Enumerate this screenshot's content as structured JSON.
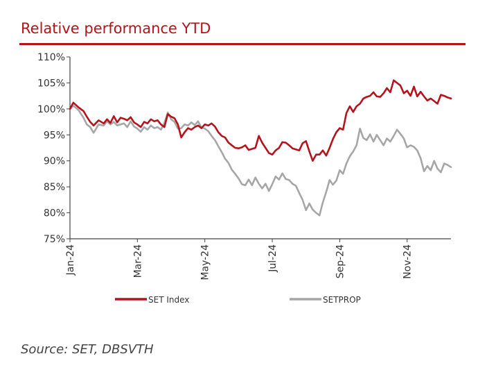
{
  "title": "Relative performance YTD",
  "source": "Source: SET, DBSVTH",
  "chart_data": {
    "type": "line",
    "ylim": [
      75,
      110
    ],
    "y_ticks": [
      "110%",
      "105%",
      "100%",
      "95%",
      "90%",
      "85%",
      "80%",
      "75%"
    ],
    "y_tick_values": [
      110,
      105,
      100,
      95,
      90,
      85,
      80,
      75
    ],
    "x_ticks": [
      "Jan-24",
      "Mar-24",
      "May-24",
      "Jul-24",
      "Sep-24",
      "Nov-24"
    ],
    "x_tick_values": [
      0,
      2,
      4,
      6,
      8,
      10
    ],
    "xlim": [
      0,
      11.3
    ],
    "legend_position": "bottom",
    "colors": {
      "SET Index": "#b5121b",
      "SETPROP": "#a6a6a6"
    },
    "series": [
      {
        "name": "SET Index",
        "x": [
          0,
          0.1,
          0.25,
          0.4,
          0.5,
          0.6,
          0.7,
          0.85,
          1.0,
          1.1,
          1.2,
          1.3,
          1.4,
          1.5,
          1.6,
          1.7,
          1.8,
          1.9,
          2.0,
          2.1,
          2.2,
          2.3,
          2.4,
          2.5,
          2.6,
          2.7,
          2.8,
          2.9,
          3.0,
          3.1,
          3.2,
          3.3,
          3.4,
          3.5,
          3.6,
          3.7,
          3.8,
          3.9,
          4.0,
          4.1,
          4.2,
          4.3,
          4.4,
          4.5,
          4.6,
          4.7,
          4.8,
          4.9,
          5.0,
          5.1,
          5.2,
          5.3,
          5.4,
          5.5,
          5.6,
          5.7,
          5.8,
          5.9,
          6.0,
          6.1,
          6.2,
          6.3,
          6.4,
          6.5,
          6.6,
          6.7,
          6.8,
          6.9,
          7.0,
          7.1,
          7.2,
          7.3,
          7.4,
          7.5,
          7.6,
          7.7,
          7.8,
          7.9,
          8.0,
          8.1,
          8.2,
          8.3,
          8.4,
          8.5,
          8.6,
          8.7,
          8.8,
          8.9,
          9.0,
          9.1,
          9.2,
          9.3,
          9.4,
          9.5,
          9.6,
          9.7,
          9.8,
          9.9,
          10.0,
          10.1,
          10.2,
          10.3,
          10.4,
          10.5,
          10.6,
          10.7,
          10.8,
          10.9,
          11.0,
          11.1,
          11.2,
          11.3
        ],
        "values": [
          100,
          101.2,
          100.3,
          99.6,
          98.5,
          97.5,
          96.8,
          97.8,
          97.2,
          98.0,
          97.3,
          98.6,
          97.4,
          98.3,
          98.1,
          97.8,
          98.4,
          97.4,
          97.0,
          96.5,
          97.5,
          97.2,
          98.0,
          97.6,
          97.8,
          97.0,
          96.5,
          99.0,
          98.5,
          98.2,
          97.0,
          94.5,
          95.5,
          96.3,
          96.0,
          96.5,
          96.8,
          96.3,
          97.0,
          96.8,
          97.2,
          96.6,
          95.5,
          94.8,
          94.5,
          93.5,
          93.0,
          92.5,
          92.4,
          92.6,
          93.0,
          92.1,
          92.3,
          92.5,
          94.8,
          93.5,
          92.5,
          91.5,
          91.2,
          92.0,
          92.5,
          93.6,
          93.5,
          93.0,
          92.4,
          92.2,
          92.0,
          93.4,
          93.8,
          91.8,
          90.0,
          91.2,
          91.2,
          92.0,
          91.0,
          92.5,
          94.2,
          95.5,
          96.3,
          96.0,
          99.2,
          100.5,
          99.4,
          100.5,
          101.0,
          102.0,
          102.3,
          102.5,
          103.2,
          102.4,
          102.3,
          103.0,
          104.0,
          103.2,
          105.5,
          105.0,
          104.5,
          103.0,
          103.5,
          102.5,
          104.3,
          102.4,
          103.3,
          102.4,
          101.6,
          102.0,
          101.5,
          101.0,
          102.7,
          102.5,
          102.2,
          102.0
        ]
      },
      {
        "name": "SETPROP",
        "x": [
          0,
          0.1,
          0.25,
          0.4,
          0.5,
          0.6,
          0.7,
          0.85,
          1.0,
          1.1,
          1.2,
          1.3,
          1.4,
          1.5,
          1.6,
          1.7,
          1.8,
          1.9,
          2.0,
          2.1,
          2.2,
          2.3,
          2.4,
          2.5,
          2.6,
          2.7,
          2.8,
          2.9,
          3.0,
          3.1,
          3.2,
          3.3,
          3.4,
          3.5,
          3.6,
          3.7,
          3.8,
          3.9,
          4.0,
          4.1,
          4.2,
          4.3,
          4.4,
          4.5,
          4.6,
          4.7,
          4.8,
          4.9,
          5.0,
          5.1,
          5.2,
          5.3,
          5.4,
          5.5,
          5.6,
          5.7,
          5.8,
          5.9,
          6.0,
          6.1,
          6.2,
          6.3,
          6.4,
          6.5,
          6.6,
          6.7,
          6.8,
          6.9,
          7.0,
          7.1,
          7.2,
          7.3,
          7.4,
          7.5,
          7.6,
          7.7,
          7.8,
          7.9,
          8.0,
          8.1,
          8.2,
          8.3,
          8.4,
          8.5,
          8.6,
          8.7,
          8.8,
          8.9,
          9.0,
          9.1,
          9.2,
          9.3,
          9.4,
          9.5,
          9.6,
          9.7,
          9.8,
          9.9,
          10.0,
          10.1,
          10.2,
          10.3,
          10.4,
          10.5,
          10.6,
          10.7,
          10.8,
          10.9,
          11.0,
          11.1,
          11.2,
          11.3
        ],
        "values": [
          100,
          100.6,
          99.8,
          98.3,
          97.0,
          96.5,
          95.4,
          97.0,
          96.8,
          97.6,
          97.0,
          97.5,
          96.8,
          97.0,
          97.2,
          96.5,
          97.6,
          96.6,
          96.2,
          95.6,
          96.5,
          96.0,
          96.8,
          96.3,
          96.5,
          96.0,
          97.3,
          99.3,
          98.0,
          97.5,
          96.2,
          96.3,
          97.0,
          96.8,
          97.4,
          96.9,
          97.6,
          96.4,
          96.2,
          95.7,
          94.8,
          94.0,
          92.8,
          91.7,
          90.4,
          89.6,
          88.3,
          87.5,
          86.6,
          85.5,
          85.3,
          86.4,
          85.3,
          86.8,
          85.6,
          84.7,
          85.6,
          84.2,
          85.5,
          87.0,
          86.4,
          87.6,
          86.5,
          86.3,
          85.6,
          85.2,
          83.8,
          82.5,
          80.5,
          81.8,
          80.6,
          80.0,
          79.5,
          82.0,
          84.0,
          86.3,
          85.4,
          86.2,
          88.2,
          87.5,
          89.5,
          90.9,
          91.8,
          93.0,
          96.2,
          94.4,
          94.0,
          95.1,
          93.7,
          95.0,
          94.0,
          93.0,
          94.3,
          93.7,
          94.8,
          96.0,
          95.2,
          94.3,
          92.6,
          93.0,
          92.7,
          92.0,
          90.5,
          88.0,
          89.0,
          88.2,
          90.0,
          88.5,
          87.8,
          89.5,
          89.2,
          88.8
        ]
      }
    ]
  }
}
